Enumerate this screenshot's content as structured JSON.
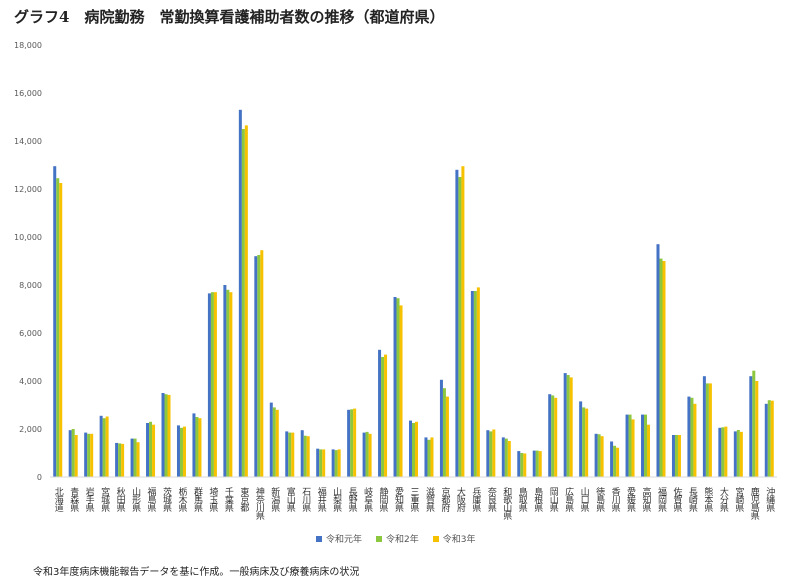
{
  "title": "グラフ4　病院勤務　常勤換算看護補助者数の推移（都道府県）",
  "note": "令和3年度病床機能報告データを基に作成。一般病床及び療養病床の状況",
  "colors": {
    "s1": "#4472C4",
    "s2": "#8DC63F",
    "s3": "#F6C200",
    "axis": "#d9d9d9",
    "text": "#595959"
  },
  "chart_data": {
    "type": "bar",
    "ylim": [
      0,
      18000
    ],
    "yticks": [
      "0",
      "2,000",
      "4,000",
      "6,000",
      "8,000",
      "10,000",
      "12,000",
      "14,000",
      "16,000",
      "18,000"
    ],
    "grid": false,
    "legend_position": "bottom",
    "categories": [
      "北海道",
      "青森県",
      "岩手県",
      "宮城県",
      "秋田県",
      "山形県",
      "福島県",
      "茨城県",
      "栃木県",
      "群馬県",
      "埼玉県",
      "千葉県",
      "東京都",
      "神奈川県",
      "新潟県",
      "富山県",
      "石川県",
      "福井県",
      "山梨県",
      "長野県",
      "岐阜県",
      "静岡県",
      "愛知県",
      "三重県",
      "滋賀県",
      "京都府",
      "大阪府",
      "兵庫県",
      "奈良県",
      "和歌山県",
      "鳥取県",
      "島根県",
      "岡山県",
      "広島県",
      "山口県",
      "徳島県",
      "香川県",
      "愛媛県",
      "高知県",
      "福岡県",
      "佐賀県",
      "長崎県",
      "熊本県",
      "大分県",
      "宮崎県",
      "鹿児島県",
      "沖縄県"
    ],
    "series": [
      {
        "name": "令和元年",
        "values": [
          12950,
          1950,
          1850,
          2550,
          1420,
          1600,
          2250,
          3500,
          2150,
          2650,
          7650,
          8000,
          15300,
          9200,
          3100,
          1900,
          1950,
          1180,
          1150,
          2800,
          1850,
          5300,
          7500,
          2350,
          1650,
          4050,
          12800,
          7750,
          1950,
          1650,
          1080,
          1100,
          3450,
          4330,
          3150,
          1800,
          1480,
          2600,
          2600,
          9700,
          1750,
          3350,
          4200,
          2050,
          1900,
          4200,
          3050
        ]
      },
      {
        "name": "令和2年",
        "values": [
          12450,
          2000,
          1800,
          2450,
          1400,
          1600,
          2300,
          3450,
          2050,
          2500,
          7700,
          7800,
          14500,
          9250,
          2900,
          1850,
          1720,
          1150,
          1120,
          2820,
          1880,
          5000,
          7450,
          2250,
          1550,
          3700,
          12500,
          7750,
          1900,
          1600,
          1000,
          1100,
          3400,
          4250,
          2900,
          1780,
          1300,
          2600,
          2600,
          9100,
          1750,
          3300,
          3900,
          2070,
          1960,
          4430,
          3200
        ]
      },
      {
        "name": "令和3年",
        "values": [
          12250,
          1750,
          1800,
          2520,
          1380,
          1450,
          2180,
          3420,
          2100,
          2450,
          7700,
          7700,
          14650,
          9450,
          2800,
          1850,
          1700,
          1150,
          1150,
          2850,
          1800,
          5100,
          7150,
          2300,
          1650,
          3350,
          12950,
          7900,
          1980,
          1500,
          980,
          1080,
          3300,
          4150,
          2850,
          1700,
          1220,
          2400,
          2180,
          9000,
          1750,
          3050,
          3900,
          2100,
          1880,
          4000,
          3180
        ]
      }
    ]
  }
}
